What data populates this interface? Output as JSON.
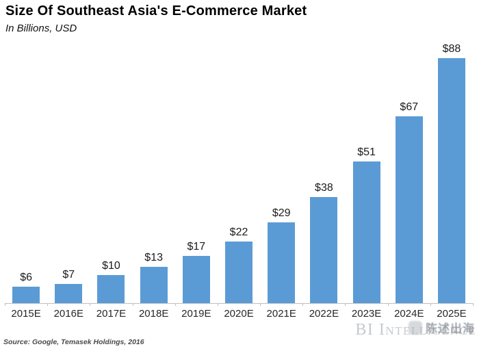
{
  "header": {
    "title": "Size Of Southeast Asia's E-Commerce Market",
    "subtitle": "In Billions, USD"
  },
  "footer": {
    "source": "Source: Google, Temasek Holdings, 2016",
    "brand_watermark": "BI Intelligence",
    "overlay_watermark": "陈述出海"
  },
  "colors": {
    "bar": "#5b9bd5",
    "axis": "#bfbfbf",
    "brand_watermark": "#c5cad0",
    "overlay_watermark": "#8a9097"
  },
  "chart_data": {
    "type": "bar",
    "title": "Size Of Southeast Asia's E-Commerce Market",
    "subtitle": "In Billions, USD",
    "categories": [
      "2015E",
      "2016E",
      "2017E",
      "2018E",
      "2019E",
      "2020E",
      "2021E",
      "2022E",
      "2023E",
      "2024E",
      "2025E"
    ],
    "values": [
      6,
      7,
      10,
      13,
      17,
      22,
      29,
      38,
      51,
      67,
      88
    ],
    "value_labels": [
      "$6",
      "$7",
      "$10",
      "$13",
      "$17",
      "$22",
      "$29",
      "$38",
      "$51",
      "$67",
      "$88"
    ],
    "xlabel": "",
    "ylabel": "In Billions, USD",
    "ylim": [
      0,
      90
    ],
    "bar_color": "#5b9bd5",
    "grid": false,
    "legend": false,
    "value_labels_position": "above-bars",
    "source": "Source: Google, Temasek Holdings, 2016"
  }
}
